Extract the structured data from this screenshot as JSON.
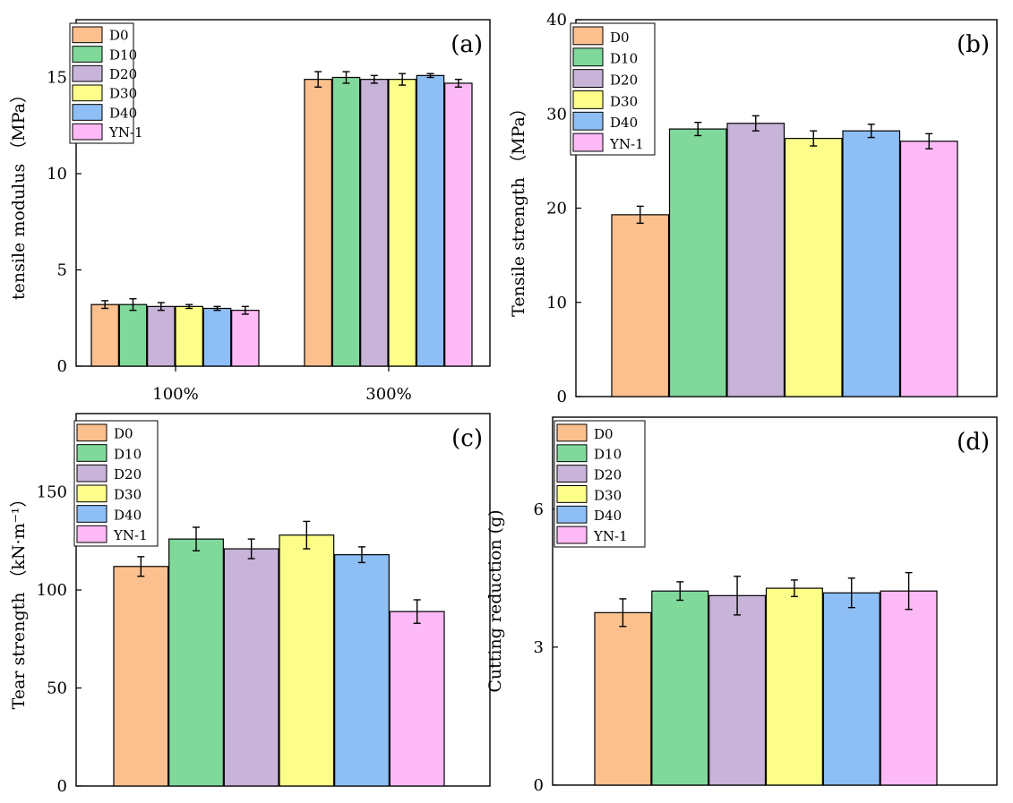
{
  "legend_series": [
    "D0",
    "D10",
    "D20",
    "D30",
    "D40",
    "YN-1"
  ],
  "colors": [
    "#FBC08E",
    "#80D99B",
    "#C8B3D9",
    "#FDFD8A",
    "#8DBEF5",
    "#FEBAF6"
  ],
  "chart_data": [
    {
      "type": "bar",
      "panel_tag": "(a)",
      "ylabel": "tensile modulus （MPa）",
      "ylim": [
        0,
        18
      ],
      "yticks": [
        0,
        5,
        10,
        15
      ],
      "categories": [
        "100%",
        "300%"
      ],
      "series": [
        {
          "name": "D0",
          "values": [
            3.2,
            14.9
          ],
          "errors": [
            0.2,
            0.4
          ]
        },
        {
          "name": "D10",
          "values": [
            3.2,
            15.0
          ],
          "errors": [
            0.3,
            0.3
          ]
        },
        {
          "name": "D20",
          "values": [
            3.1,
            14.9
          ],
          "errors": [
            0.2,
            0.2
          ]
        },
        {
          "name": "D30",
          "values": [
            3.1,
            14.9
          ],
          "errors": [
            0.1,
            0.3
          ]
        },
        {
          "name": "D40",
          "values": [
            3.0,
            15.1
          ],
          "errors": [
            0.1,
            0.1
          ]
        },
        {
          "name": "YN-1",
          "values": [
            2.9,
            14.7
          ],
          "errors": [
            0.2,
            0.2
          ]
        }
      ],
      "legend_position": "top-left"
    },
    {
      "type": "bar",
      "panel_tag": "(b)",
      "ylabel": "Tensile strength （MPa）",
      "ylim": [
        0,
        40
      ],
      "yticks": [
        0,
        10,
        20,
        30,
        40
      ],
      "categories": [
        "D0",
        "D10",
        "D20",
        "D30",
        "D40",
        "YN-1"
      ],
      "values": [
        19.3,
        28.4,
        29.0,
        27.4,
        28.2,
        27.1
      ],
      "errors": [
        0.9,
        0.7,
        0.8,
        0.8,
        0.7,
        0.8
      ],
      "legend_position": "top-left"
    },
    {
      "type": "bar",
      "panel_tag": "(c)",
      "ylabel": "Tear strength （kN·m⁻¹）",
      "ylim": [
        0,
        190
      ],
      "yticks": [
        0,
        50,
        100,
        150
      ],
      "categories": [
        "D0",
        "D10",
        "D20",
        "D30",
        "D40",
        "YN-1"
      ],
      "values": [
        112,
        126,
        121,
        128,
        118,
        89
      ],
      "errors": [
        5,
        6,
        5,
        7,
        4,
        6
      ],
      "legend_position": "top-left"
    },
    {
      "type": "bar",
      "panel_tag": "(d)",
      "ylabel": "Cutting reduction (g)",
      "ylim": [
        0,
        8
      ],
      "yticks": [
        0,
        3,
        6
      ],
      "categories": [
        "D0",
        "D10",
        "D20",
        "D30",
        "D40",
        "YN-1"
      ],
      "values": [
        3.75,
        4.22,
        4.12,
        4.28,
        4.18,
        4.22
      ],
      "errors": [
        0.3,
        0.2,
        0.42,
        0.18,
        0.32,
        0.4
      ],
      "legend_position": "top-left"
    }
  ]
}
